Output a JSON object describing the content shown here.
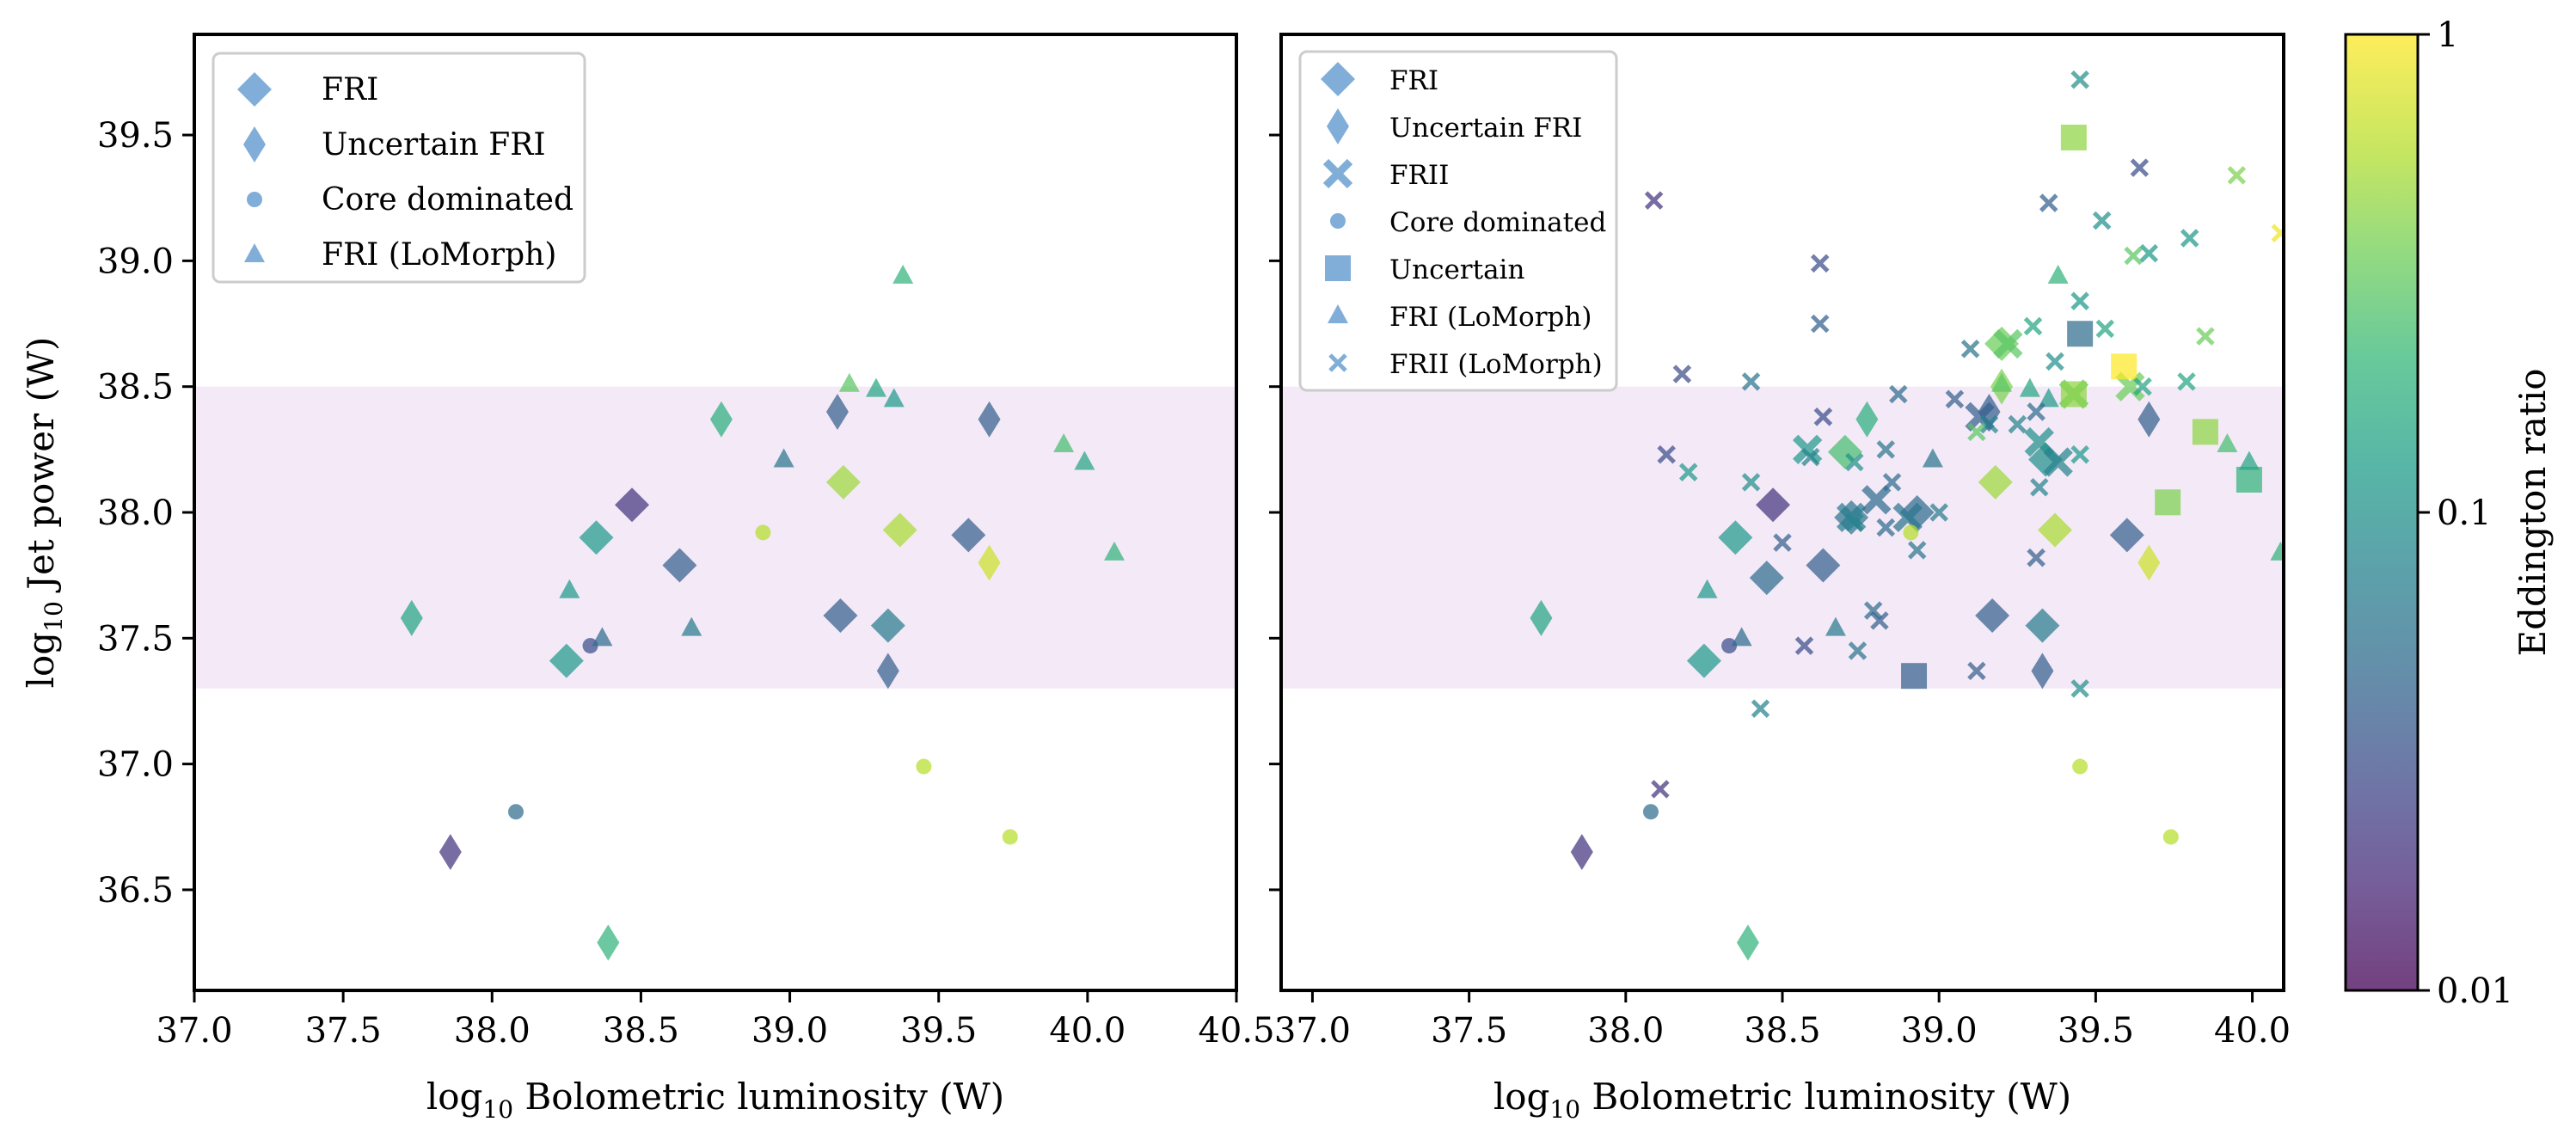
{
  "chart_data": [
    {
      "type": "scatter",
      "panel": "left",
      "xlabel_prefix": "log",
      "xlabel_sub": "10",
      "xlabel_suffix": " Bolometric luminosity (W)",
      "ylabel_prefix": "log",
      "ylabel_sub": "10",
      "ylabel_suffix": " Jet power (W)",
      "xlim": [
        37.0,
        40.5
      ],
      "ylim": [
        36.1,
        39.9
      ],
      "xticks": [
        "37.0",
        "37.5",
        "38.0",
        "38.5",
        "39.0",
        "39.5",
        "40.0",
        "40.5"
      ],
      "yticks": [
        "36.5",
        "37.0",
        "37.5",
        "38.0",
        "38.5",
        "39.0",
        "39.5"
      ],
      "band": [
        37.3,
        38.5
      ],
      "legend": [
        "FRI",
        "Uncertain FRI",
        "Core dominated",
        "FRI (LoMorph)"
      ],
      "series": [
        {
          "name": "FRI",
          "marker": "diamond",
          "points": [
            [
              38.47,
              38.03,
              0.02
            ],
            [
              38.35,
              37.9,
              0.12
            ],
            [
              38.63,
              37.79,
              0.04
            ],
            [
              38.25,
              37.41,
              0.12
            ],
            [
              39.17,
              37.59,
              0.04
            ],
            [
              39.33,
              37.55,
              0.07
            ],
            [
              39.18,
              38.12,
              0.5
            ],
            [
              39.37,
              37.93,
              0.55
            ],
            [
              39.6,
              37.91,
              0.04
            ]
          ]
        },
        {
          "name": "Uncertain FRI",
          "marker": "thin-diamond",
          "points": [
            [
              37.73,
              37.58,
              0.15
            ],
            [
              37.86,
              36.65,
              0.02
            ],
            [
              38.39,
              36.29,
              0.2
            ],
            [
              38.77,
              38.37,
              0.18
            ],
            [
              39.16,
              38.4,
              0.04
            ],
            [
              39.33,
              37.37,
              0.04
            ],
            [
              39.67,
              38.37,
              0.04
            ],
            [
              39.67,
              37.8,
              0.7
            ]
          ]
        },
        {
          "name": "Core dominated",
          "marker": "circle",
          "points": [
            [
              38.08,
              36.81,
              0.05
            ],
            [
              38.33,
              37.47,
              0.03
            ],
            [
              38.91,
              37.92,
              0.6
            ],
            [
              39.45,
              36.99,
              0.6
            ],
            [
              39.74,
              36.71,
              0.6
            ]
          ]
        },
        {
          "name": "FRI (LoMorph)",
          "marker": "triangle",
          "points": [
            [
              38.26,
              37.69,
              0.12
            ],
            [
              38.37,
              37.5,
              0.05
            ],
            [
              38.67,
              37.54,
              0.07
            ],
            [
              38.98,
              38.21,
              0.06
            ],
            [
              39.2,
              38.51,
              0.3
            ],
            [
              39.29,
              38.49,
              0.15
            ],
            [
              39.35,
              38.45,
              0.12
            ],
            [
              39.38,
              38.94,
              0.2
            ],
            [
              39.92,
              38.27,
              0.25
            ],
            [
              39.99,
              38.2,
              0.15
            ],
            [
              40.09,
              37.84,
              0.2
            ]
          ]
        }
      ]
    },
    {
      "type": "scatter",
      "panel": "right",
      "xlabel_prefix": "log",
      "xlabel_sub": "10",
      "xlabel_suffix": " Bolometric luminosity (W)",
      "xlim": [
        36.9,
        40.1
      ],
      "ylim": [
        36.1,
        39.9
      ],
      "xticks": [
        "37.0",
        "37.5",
        "38.0",
        "38.5",
        "39.0",
        "39.5",
        "40.0"
      ],
      "band": [
        37.3,
        38.5
      ],
      "legend": [
        "FRI",
        "Uncertain FRI",
        "FRII",
        "Core dominated",
        "Uncertain",
        "FRI (LoMorph)",
        "FRII (LoMorph)"
      ],
      "series": [
        {
          "name": "FRI",
          "marker": "diamond",
          "points": [
            [
              38.47,
              38.03,
              0.02
            ],
            [
              38.35,
              37.9,
              0.12
            ],
            [
              38.63,
              37.79,
              0.04
            ],
            [
              38.25,
              37.41,
              0.12
            ],
            [
              39.17,
              37.59,
              0.04
            ],
            [
              39.33,
              37.55,
              0.07
            ],
            [
              39.18,
              38.12,
              0.5
            ],
            [
              39.37,
              37.93,
              0.55
            ],
            [
              39.6,
              37.91,
              0.04
            ],
            [
              38.45,
              37.74,
              0.05
            ],
            [
              38.7,
              38.24,
              0.25
            ],
            [
              39.2,
              38.67,
              0.35
            ],
            [
              38.72,
              37.98,
              0.06
            ],
            [
              38.93,
              38.0,
              0.05
            ],
            [
              39.34,
              38.21,
              0.1
            ]
          ]
        },
        {
          "name": "Uncertain FRI",
          "marker": "thin-diamond",
          "points": [
            [
              37.73,
              37.58,
              0.15
            ],
            [
              37.86,
              36.65,
              0.02
            ],
            [
              38.39,
              36.29,
              0.2
            ],
            [
              38.77,
              38.37,
              0.18
            ],
            [
              39.16,
              38.4,
              0.04
            ],
            [
              39.33,
              37.37,
              0.04
            ],
            [
              39.67,
              38.37,
              0.04
            ],
            [
              39.67,
              37.8,
              0.7
            ],
            [
              39.2,
              38.5,
              0.4
            ]
          ]
        },
        {
          "name": "FRII",
          "marker": "x",
          "points": [
            [
              38.58,
              38.25,
              0.12
            ],
            [
              38.72,
              37.98,
              0.07
            ],
            [
              38.8,
              38.05,
              0.05
            ],
            [
              38.9,
              37.98,
              0.06
            ],
            [
              39.13,
              38.38,
              0.04
            ],
            [
              39.22,
              38.67,
              0.3
            ],
            [
              39.32,
              38.28,
              0.1
            ],
            [
              39.38,
              38.2,
              0.08
            ],
            [
              39.43,
              38.47,
              0.3
            ],
            [
              39.61,
              38.5,
              0.35
            ]
          ]
        },
        {
          "name": "Core dominated",
          "marker": "circle",
          "points": [
            [
              38.08,
              36.81,
              0.05
            ],
            [
              38.33,
              37.47,
              0.03
            ],
            [
              38.91,
              37.92,
              0.6
            ],
            [
              39.45,
              36.99,
              0.6
            ],
            [
              39.74,
              36.71,
              0.6
            ]
          ]
        },
        {
          "name": "Uncertain",
          "marker": "square",
          "points": [
            [
              39.43,
              39.49,
              0.45
            ],
            [
              39.59,
              38.58,
              1.0
            ],
            [
              39.45,
              38.71,
              0.05
            ],
            [
              39.43,
              38.47,
              0.45
            ],
            [
              39.85,
              38.32,
              0.45
            ],
            [
              39.73,
              38.04,
              0.4
            ],
            [
              39.99,
              38.13,
              0.2
            ],
            [
              38.92,
              37.35,
              0.04
            ]
          ]
        },
        {
          "name": "FRI (LoMorph)",
          "marker": "triangle",
          "points": [
            [
              38.26,
              37.69,
              0.12
            ],
            [
              38.37,
              37.5,
              0.05
            ],
            [
              38.67,
              37.54,
              0.07
            ],
            [
              38.98,
              38.21,
              0.06
            ],
            [
              39.2,
              38.51,
              0.3
            ],
            [
              39.29,
              38.49,
              0.15
            ],
            [
              39.35,
              38.45,
              0.12
            ],
            [
              39.38,
              38.94,
              0.2
            ],
            [
              39.92,
              38.27,
              0.25
            ],
            [
              39.99,
              38.2,
              0.15
            ],
            [
              40.09,
              37.84,
              0.2
            ]
          ]
        },
        {
          "name": "FRII (LoMorph)",
          "marker": "small-x",
          "points": [
            [
              38.09,
              39.24,
              0.02
            ],
            [
              38.62,
              38.99,
              0.03
            ],
            [
              39.45,
              39.72,
              0.1
            ],
            [
              39.64,
              39.37,
              0.03
            ],
            [
              39.95,
              39.34,
              0.4
            ],
            [
              39.35,
              39.23,
              0.04
            ],
            [
              39.52,
              39.16,
              0.1
            ],
            [
              39.8,
              39.09,
              0.12
            ],
            [
              39.62,
              39.02,
              0.3
            ],
            [
              39.67,
              39.03,
              0.12
            ],
            [
              40.09,
              39.11,
              0.9
            ],
            [
              38.62,
              38.75,
              0.04
            ],
            [
              39.45,
              38.84,
              0.12
            ],
            [
              39.53,
              38.73,
              0.15
            ],
            [
              39.85,
              38.7,
              0.35
            ],
            [
              38.18,
              38.55,
              0.03
            ],
            [
              38.4,
              38.52,
              0.06
            ],
            [
              38.87,
              38.47,
              0.05
            ],
            [
              39.1,
              38.65,
              0.06
            ],
            [
              39.3,
              38.74,
              0.15
            ],
            [
              39.37,
              38.6,
              0.1
            ],
            [
              39.79,
              38.52,
              0.15
            ],
            [
              38.13,
              38.23,
              0.03
            ],
            [
              38.63,
              38.38,
              0.03
            ],
            [
              38.83,
              38.25,
              0.06
            ],
            [
              39.05,
              38.45,
              0.04
            ],
            [
              39.16,
              38.35,
              0.08
            ],
            [
              39.31,
              38.4,
              0.05
            ],
            [
              39.45,
              38.23,
              0.12
            ],
            [
              39.65,
              38.5,
              0.15
            ],
            [
              38.2,
              38.16,
              0.12
            ],
            [
              38.4,
              38.12,
              0.1
            ],
            [
              38.59,
              38.22,
              0.08
            ],
            [
              38.73,
              38.2,
              0.1
            ],
            [
              38.85,
              38.12,
              0.05
            ],
            [
              39.0,
              38.0,
              0.07
            ],
            [
              39.12,
              38.32,
              0.3
            ],
            [
              39.25,
              38.35,
              0.08
            ],
            [
              39.32,
              38.1,
              0.08
            ],
            [
              38.5,
              37.88,
              0.04
            ],
            [
              38.73,
              37.96,
              0.08
            ],
            [
              38.83,
              37.94,
              0.05
            ],
            [
              38.93,
              37.85,
              0.06
            ],
            [
              39.31,
              37.82,
              0.04
            ],
            [
              38.79,
              37.61,
              0.05
            ],
            [
              38.81,
              37.57,
              0.04
            ],
            [
              38.57,
              37.47,
              0.03
            ],
            [
              38.74,
              37.45,
              0.06
            ],
            [
              39.12,
              37.37,
              0.04
            ],
            [
              39.45,
              37.3,
              0.1
            ],
            [
              38.43,
              37.22,
              0.08
            ],
            [
              38.11,
              36.9,
              0.02
            ]
          ]
        }
      ]
    }
  ],
  "colorbar": {
    "label": "Eddington ratio",
    "ticks": [
      "1",
      "0.1",
      "0.01"
    ],
    "scale": "log",
    "range": [
      0.01,
      1
    ]
  },
  "colors": {
    "band": "#f4e9f7",
    "legend_marker": "#7aaad6",
    "viridis": [
      "#440154",
      "#482878",
      "#3e4989",
      "#31688e",
      "#26828e",
      "#1f9e89",
      "#35b779",
      "#6ece58",
      "#b5de2b",
      "#fde725"
    ]
  }
}
